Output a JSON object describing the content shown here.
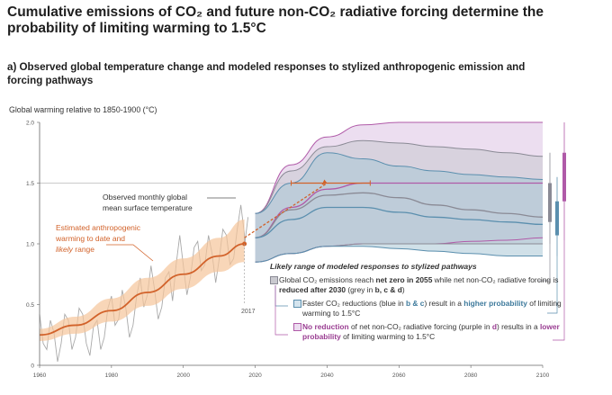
{
  "title": "Cumulative emissions of CO₂ and future non-CO₂ radiative forcing determine the probability of limiting warming to 1.5°C",
  "panel_title": "a) Observed global temperature change and modeled responses to stylized anthropogenic emission and forcing pathways",
  "colors": {
    "grey_band": "#c9c9cf",
    "grey_edge": "#8a8a95",
    "blue_band": "#aac6d6",
    "blue_line": "#5b8fae",
    "purple_band": "#dcc3e3",
    "purple_line": "#b05aa8",
    "observed": "#a9a9a9",
    "estimate": "#d2622a",
    "estimate_range": "#f5c49a"
  },
  "annotations": {
    "observed_label_1": "Observed monthly global",
    "observed_label_2": "mean surface temperature",
    "estimated_label_1": "Estimated anthropogenic",
    "estimated_label_2": "warming to date and",
    "estimated_label_3a": "likely",
    "estimated_label_3b": " range",
    "year_marker": "2017"
  },
  "legend": {
    "title": "Likely range of modeled responses to stylized pathways",
    "grey": {
      "p1": "Global CO₂ emissions reach ",
      "b1": "net zero in 2055",
      "p2": " while net non-CO₂ radiative forcing is ",
      "b2": "reduced after 2030",
      "p3": " (grey in ",
      "b3": "b, c & d",
      "p4": ")"
    },
    "blue": {
      "p1": "Faster CO₂ reductions (blue in ",
      "b1": "b & c",
      "p2": ") result in a ",
      "b2": "higher probability",
      "p3": " of limiting warming to 1.5°C"
    },
    "purple": {
      "b1": "No reduction",
      "p1": " of net non-CO₂ radiative forcing (purple in ",
      "b2": "d",
      "p2": ") results in a ",
      "b3": "lower probability",
      "p3": " of limiting warming to 1.5°C"
    }
  },
  "chart_data": {
    "type": "line",
    "title": "Global warming relative to 1850-1900 (°C)",
    "ylabel": "Global warming relative to 1850-1900 (°C)",
    "xlabel": "",
    "xlim": [
      1960,
      2100
    ],
    "ylim": [
      0,
      2.0
    ],
    "x_ticks": [
      1960,
      1980,
      2000,
      2020,
      2040,
      2060,
      2080,
      2100
    ],
    "y_ticks": [
      0,
      0.5,
      1.0,
      1.5,
      2.0
    ],
    "y_tick_labels": [
      "0",
      "0.5",
      "1.0",
      "1.5",
      "2.0"
    ],
    "reference_line": 1.5,
    "estimated_anthropogenic_warming": {
      "x": [
        1960,
        1970,
        1980,
        1990,
        2000,
        2010,
        2017
      ],
      "y": [
        0.25,
        0.33,
        0.45,
        0.6,
        0.75,
        0.9,
        1.0
      ],
      "low": [
        0.2,
        0.26,
        0.36,
        0.49,
        0.63,
        0.77,
        0.85
      ],
      "high": [
        0.3,
        0.4,
        0.55,
        0.72,
        0.88,
        1.05,
        1.2
      ]
    },
    "observed_monthly": {
      "x": [
        1960,
        1962,
        1964,
        1966,
        1968,
        1970,
        1972,
        1974,
        1976,
        1978,
        1980,
        1982,
        1984,
        1986,
        1988,
        1990,
        1992,
        1994,
        1996,
        1998,
        2000,
        2002,
        2004,
        2006,
        2008,
        2010,
        2012,
        2014,
        2016,
        2017
      ],
      "y": [
        0.3,
        0.25,
        0.15,
        0.3,
        0.25,
        0.35,
        0.3,
        0.2,
        0.25,
        0.35,
        0.45,
        0.5,
        0.35,
        0.45,
        0.6,
        0.7,
        0.5,
        0.6,
        0.65,
        0.95,
        0.7,
        0.85,
        0.9,
        0.95,
        0.8,
        1.0,
        0.95,
        1.0,
        1.2,
        1.1
      ]
    },
    "projection_x": [
      2020,
      2030,
      2040,
      2050,
      2060,
      2070,
      2080,
      2090,
      2100
    ],
    "series": [
      {
        "name": "purple likely range",
        "low": [
          0.85,
          0.92,
          0.98,
          1.0,
          1.0,
          1.0,
          1.02,
          1.03,
          1.05
        ],
        "high": [
          1.25,
          1.65,
          1.88,
          1.98,
          2.0,
          2.0,
          2.0,
          2.0,
          2.0
        ],
        "mid": [
          1.05,
          1.3,
          1.45,
          1.5,
          1.5,
          1.5,
          1.5,
          1.5,
          1.5
        ]
      },
      {
        "name": "grey likely range",
        "low": [
          0.85,
          0.92,
          0.98,
          1.0,
          1.0,
          1.0,
          1.0,
          1.0,
          1.0
        ],
        "high": [
          1.25,
          1.6,
          1.8,
          1.85,
          1.83,
          1.8,
          1.78,
          1.75,
          1.72
        ],
        "mid": [
          1.05,
          1.28,
          1.4,
          1.42,
          1.38,
          1.32,
          1.28,
          1.25,
          1.22
        ]
      },
      {
        "name": "blue likely range",
        "low": [
          0.85,
          0.92,
          0.98,
          0.98,
          0.96,
          0.94,
          0.92,
          0.9,
          0.9
        ],
        "high": [
          1.25,
          1.5,
          1.75,
          1.7,
          1.64,
          1.6,
          1.57,
          1.55,
          1.53
        ],
        "mid": [
          1.05,
          1.2,
          1.3,
          1.3,
          1.26,
          1.22,
          1.2,
          1.18,
          1.16
        ]
      }
    ],
    "extrapolated_trend": {
      "x": [
        2017,
        2040
      ],
      "y": [
        1.05,
        1.5
      ]
    },
    "timing_range": {
      "x": [
        2030,
        2052
      ],
      "y": 1.5
    },
    "range_bars": [
      {
        "name": "grey",
        "low": 1.0,
        "high": 1.75,
        "q1": 1.18,
        "q3": 1.5
      },
      {
        "name": "blue",
        "low": 0.9,
        "high": 1.55,
        "q1": 1.07,
        "q3": 1.35
      },
      {
        "name": "purple",
        "low": 1.03,
        "high": 2.0,
        "q1": 1.35,
        "q3": 1.75
      }
    ]
  }
}
